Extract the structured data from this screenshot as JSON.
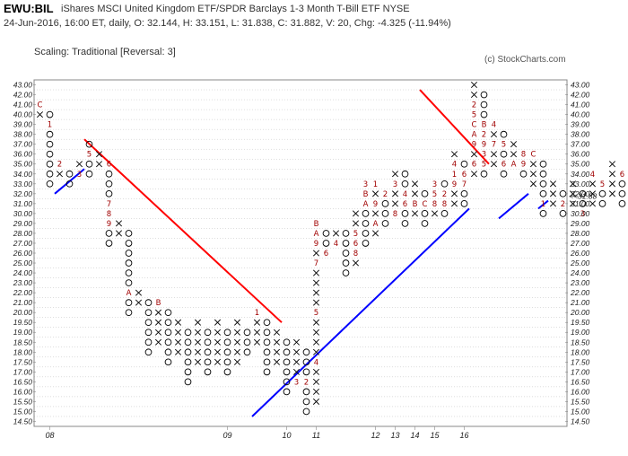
{
  "header": {
    "symbol": "EWU:BIL",
    "description": "iShares MSCI United Kingdom ETF/SPDR Barclays 1-3 Month T-Bill ETF  NYSE",
    "stats": "24-Jun-2016, 16:00 ET, daily, O: 32.144, H: 33.151, L: 31.838, C: 31.882, V: 20, Chg: -4.325 (-11.94%)",
    "scaling": "Scaling: Traditional [Reversal: 3]",
    "credit": "(c) StockCharts.com"
  },
  "colors": {
    "x_mark": "#000000",
    "o_mark": "#000000",
    "month_mark": "#a00000",
    "resistance": "#ff0000",
    "support": "#0000ff",
    "grid": "#bdbdbd",
    "last_price": "#a00000"
  },
  "chart_data": {
    "type": "point-and-figure",
    "y_levels": [
      "14.50",
      "15.00",
      "15.50",
      "16.00",
      "16.50",
      "17.00",
      "17.50",
      "18.00",
      "18.50",
      "19.00",
      "19.50",
      "20.00",
      "21.00",
      "22.00",
      "23.00",
      "24.00",
      "25.00",
      "26.00",
      "27.00",
      "28.00",
      "29.00",
      "30.00",
      "31.00",
      "32.00",
      "33.00",
      "34.00",
      "35.00",
      "36.00",
      "37.00",
      "38.00",
      "39.00",
      "40.00",
      "41.00",
      "42.00",
      "43.00"
    ],
    "red_tick_label": "31.00",
    "last_price_label": "<<31.88",
    "x_tick_labels": [
      {
        "label": "08",
        "col": 1
      },
      {
        "label": "09",
        "col": 19
      },
      {
        "label": "10",
        "col": 25
      },
      {
        "label": "11",
        "col": 28
      },
      {
        "label": "12",
        "col": 34
      },
      {
        "label": "13",
        "col": 36
      },
      {
        "label": "14",
        "col": 38
      },
      {
        "label": "15",
        "col": 40
      },
      {
        "label": "16",
        "col": 43
      }
    ],
    "columns": [
      {
        "t": "X",
        "from": 31,
        "to": 32,
        "marks": {
          "32": "C"
        }
      },
      {
        "t": "O",
        "from": 24,
        "to": 31,
        "marks": {
          "30": "1"
        }
      },
      {
        "t": "X",
        "from": 25,
        "to": 26,
        "marks": {
          "26": "2"
        }
      },
      {
        "t": "O",
        "from": 24,
        "to": 25
      },
      {
        "t": "X",
        "from": 25,
        "to": 26,
        "marks": {
          "25": "3"
        }
      },
      {
        "t": "O",
        "from": 25,
        "to": 28,
        "marks": {
          "27": "5"
        }
      },
      {
        "t": "X",
        "from": 26,
        "to": 27,
        "marks": {
          "25": "4"
        }
      },
      {
        "t": "O",
        "from": 18,
        "to": 26,
        "marks": {
          "26": "6",
          "22": "7",
          "21": "8",
          "20": "9"
        }
      },
      {
        "t": "X",
        "from": 19,
        "to": 20
      },
      {
        "t": "O",
        "from": 11,
        "to": 19,
        "marks": {
          "13": "A"
        }
      },
      {
        "t": "X",
        "from": 12,
        "to": 13
      },
      {
        "t": "O",
        "from": 7,
        "to": 12
      },
      {
        "t": "X",
        "from": 8,
        "to": 12,
        "marks": {
          "12": "B"
        }
      },
      {
        "t": "O",
        "from": 6,
        "to": 11
      },
      {
        "t": "X",
        "from": 7,
        "to": 10
      },
      {
        "t": "O",
        "from": 4,
        "to": 9
      },
      {
        "t": "X",
        "from": 6,
        "to": 10
      },
      {
        "t": "O",
        "from": 5,
        "to": 9,
        "marks": {
          "10": "C"
        }
      },
      {
        "t": "X",
        "from": 6,
        "to": 10
      },
      {
        "t": "O",
        "from": 5,
        "to": 9
      },
      {
        "t": "X",
        "from": 6,
        "to": 10
      },
      {
        "t": "O",
        "from": 7,
        "to": 9
      },
      {
        "t": "X",
        "from": 8,
        "to": 11,
        "marks": {
          "11": "1"
        }
      },
      {
        "t": "O",
        "from": 5,
        "to": 10
      },
      {
        "t": "X",
        "from": 6,
        "to": 9
      },
      {
        "t": "O",
        "from": 3,
        "to": 8
      },
      {
        "t": "X",
        "from": 4,
        "to": 8,
        "marks": {
          "4": "3"
        }
      },
      {
        "t": "O",
        "from": 1,
        "to": 7,
        "marks": {
          "4": "2"
        }
      },
      {
        "t": "X",
        "from": 2,
        "to": 20,
        "marks": {
          "6": "4",
          "11": "5",
          "20": "B",
          "19": "A",
          "18": "9",
          "16": "7"
        }
      },
      {
        "t": "O",
        "from": 17,
        "to": 19,
        "marks": {
          "17": "6"
        }
      },
      {
        "t": "X",
        "from": 18,
        "to": 19,
        "marks": {
          "18": "4"
        }
      },
      {
        "t": "O",
        "from": 15,
        "to": 19
      },
      {
        "t": "X",
        "from": 16,
        "to": 21,
        "marks": {
          "19": "5",
          "18": "6",
          "17": "8"
        }
      },
      {
        "t": "O",
        "from": 18,
        "to": 24,
        "marks": {
          "24": "3",
          "23": "B",
          "22": "A"
        }
      },
      {
        "t": "X",
        "from": 19,
        "to": 24,
        "marks": {
          "24": "1",
          "22": "9",
          "20": "A"
        }
      },
      {
        "t": "O",
        "from": 20,
        "to": 23,
        "marks": {
          "23": "2"
        }
      },
      {
        "t": "X",
        "from": 21,
        "to": 25,
        "marks": {
          "24": "3",
          "21": "8"
        }
      },
      {
        "t": "O",
        "from": 20,
        "to": 25,
        "marks": {
          "23": "4",
          "22": "6"
        }
      },
      {
        "t": "X",
        "from": 21,
        "to": 24,
        "marks": {
          "22": "B"
        }
      },
      {
        "t": "O",
        "from": 20,
        "to": 23,
        "marks": {
          "22": "C"
        }
      },
      {
        "t": "X",
        "from": 21,
        "to": 24,
        "marks": {
          "24": "3",
          "23": "5",
          "22": "8"
        }
      },
      {
        "t": "O",
        "from": 21,
        "to": 24,
        "marks": {
          "23": "2",
          "22": "8"
        }
      },
      {
        "t": "X",
        "from": 22,
        "to": 27,
        "marks": {
          "24": "9",
          "25": "1",
          "26": "4"
        }
      },
      {
        "t": "O",
        "from": 22,
        "to": 26,
        "marks": {
          "25": "6",
          "24": "7"
        }
      },
      {
        "t": "X",
        "from": 25,
        "to": 34,
        "marks": {
          "26": "6",
          "28": "9",
          "29": "A",
          "30": "C",
          "31": "5",
          "32": "2"
        }
      },
      {
        "t": "O",
        "from": 25,
        "to": 33,
        "marks": {
          "30": "B",
          "29": "2",
          "28": "9",
          "27": "3",
          "26": "5"
        }
      },
      {
        "t": "X",
        "from": 26,
        "to": 30,
        "marks": {
          "30": "4",
          "28": "7"
        }
      },
      {
        "t": "O",
        "from": 25,
        "to": 29,
        "marks": {
          "28": "5",
          "26": "6"
        }
      },
      {
        "t": "X",
        "from": 26,
        "to": 28,
        "marks": {
          "26": "A"
        }
      },
      {
        "t": "O",
        "from": 25,
        "to": 27,
        "marks": {
          "27": "8",
          "26": "9"
        }
      },
      {
        "t": "X",
        "from": 24,
        "to": 27,
        "marks": {
          "27": "C"
        }
      },
      {
        "t": "O",
        "from": 21,
        "to": 26,
        "marks": {
          "22": "1"
        }
      },
      {
        "t": "X",
        "from": 22,
        "to": 24
      },
      {
        "t": "O",
        "from": 21,
        "to": 23,
        "marks": {
          "22": "2"
        }
      },
      {
        "t": "X",
        "from": 22,
        "to": 24
      },
      {
        "t": "O",
        "from": 21,
        "to": 23,
        "marks": {
          "21": "3"
        }
      },
      {
        "t": "X",
        "from": 22,
        "to": 25,
        "marks": {
          "25": "4"
        }
      },
      {
        "t": "O",
        "from": 22,
        "to": 24,
        "marks": {
          "24": "5"
        }
      },
      {
        "t": "X",
        "from": 23,
        "to": 26
      },
      {
        "t": "O",
        "from": 22,
        "to": 25,
        "marks": {
          "25": "6"
        }
      },
      {
        "t": "X",
        "from": 23,
        "to": 25
      },
      {
        "t": "O",
        "from": 21,
        "to": 25
      }
    ]
  }
}
